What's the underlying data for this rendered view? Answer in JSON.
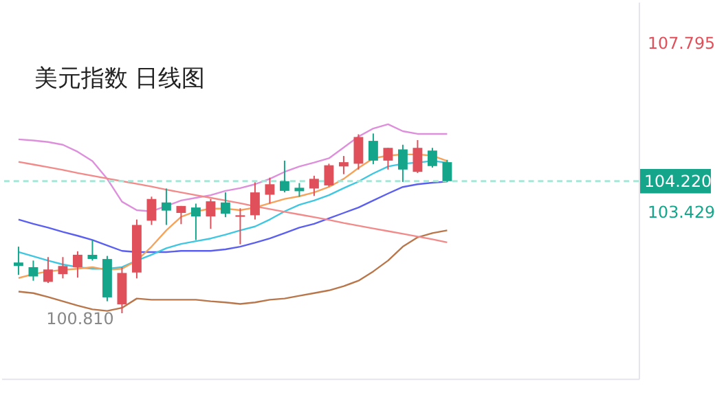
{
  "chart_data": {
    "type": "candlestick",
    "title": "美元指数 日线图",
    "categories": [
      null,
      null,
      null,
      null,
      null,
      null,
      null,
      null,
      null,
      null,
      null,
      null,
      null,
      null,
      null,
      null,
      null,
      null,
      null,
      null,
      null,
      null,
      null,
      null,
      null,
      null,
      null,
      null,
      null,
      null
    ],
    "ohlc": [
      [
        102.12,
        102.53,
        101.8,
        102.03
      ],
      [
        102.0,
        102.17,
        101.65,
        101.76
      ],
      [
        101.62,
        102.26,
        101.59,
        101.94
      ],
      [
        101.82,
        102.26,
        101.71,
        102.03
      ],
      [
        102.0,
        102.41,
        101.73,
        102.32
      ],
      [
        102.32,
        102.7,
        102.17,
        102.21
      ],
      [
        102.21,
        102.29,
        101.12,
        101.22
      ],
      [
        101.04,
        102.0,
        100.81,
        101.85
      ],
      [
        101.86,
        103.23,
        101.71,
        103.09
      ],
      [
        103.2,
        103.82,
        103.09,
        103.76
      ],
      [
        103.67,
        104.03,
        103.09,
        103.46
      ],
      [
        103.4,
        103.58,
        103.11,
        103.58
      ],
      [
        103.54,
        103.64,
        102.7,
        103.31
      ],
      [
        103.31,
        103.76,
        102.99,
        103.7
      ],
      [
        103.67,
        103.93,
        103.29,
        103.38
      ],
      [
        103.3,
        103.52,
        102.59,
        103.34
      ],
      [
        103.34,
        104.19,
        103.23,
        103.93
      ],
      [
        103.87,
        104.31,
        103.64,
        104.14
      ],
      [
        104.22,
        104.75,
        103.93,
        103.97
      ],
      [
        104.05,
        104.17,
        103.82,
        103.96
      ],
      [
        104.03,
        104.36,
        103.84,
        104.28
      ],
      [
        104.11,
        104.67,
        104.08,
        104.63
      ],
      [
        104.6,
        104.87,
        104.4,
        104.71
      ],
      [
        104.67,
        105.43,
        104.52,
        105.36
      ],
      [
        105.26,
        105.45,
        104.66,
        104.75
      ],
      [
        104.75,
        105.08,
        104.52,
        105.08
      ],
      [
        105.04,
        105.16,
        104.2,
        104.52
      ],
      [
        104.46,
        105.28,
        104.43,
        105.08
      ],
      [
        105.01,
        105.08,
        104.57,
        104.61
      ],
      [
        104.71,
        104.77,
        104.2,
        104.22
      ]
    ],
    "colors": [
      "#14a58a",
      "#14a58a",
      "#e0505a",
      "#e0505a",
      "#e0505a",
      "#14a58a",
      "#14a58a",
      "#e0505a",
      "#e0505a",
      "#e0505a",
      "#14a58a",
      "#e0505a",
      "#14a58a",
      "#e0505a",
      "#14a58a",
      "#e0505a",
      "#e0505a",
      "#e0505a",
      "#14a58a",
      "#14a58a",
      "#e0505a",
      "#e0505a",
      "#e0505a",
      "#e0505a",
      "#14a58a",
      "#e0505a",
      "#14a58a",
      "#e0505a",
      "#14a58a",
      "#14a58a"
    ],
    "series": [
      {
        "type": "line",
        "color": "#de8fdc",
        "values": [
          105.3,
          105.27,
          105.23,
          105.16,
          104.98,
          104.74,
          104.28,
          103.69,
          103.47,
          103.44,
          103.58,
          103.72,
          103.79,
          103.86,
          103.97,
          104.04,
          104.14,
          104.28,
          104.46,
          104.6,
          104.7,
          104.81,
          105.09,
          105.37,
          105.58,
          105.69,
          105.51,
          105.44,
          105.44,
          105.44
        ]
      },
      {
        "type": "line",
        "color": "#b8764a",
        "values": [
          101.37,
          101.33,
          101.23,
          101.12,
          101.01,
          100.91,
          100.87,
          100.95,
          101.19,
          101.16,
          101.16,
          101.16,
          101.16,
          101.12,
          101.09,
          101.05,
          101.09,
          101.16,
          101.19,
          101.26,
          101.33,
          101.4,
          101.51,
          101.65,
          101.89,
          102.17,
          102.53,
          102.77,
          102.88,
          102.95
        ]
      },
      {
        "type": "line",
        "color": "#5b5ff0",
        "values": [
          103.23,
          103.12,
          103.02,
          102.91,
          102.81,
          102.7,
          102.56,
          102.42,
          102.39,
          102.39,
          102.39,
          102.42,
          102.42,
          102.42,
          102.46,
          102.53,
          102.63,
          102.74,
          102.88,
          103.02,
          103.12,
          103.26,
          103.4,
          103.54,
          103.72,
          103.9,
          104.07,
          104.14,
          104.18,
          104.21
        ]
      },
      {
        "type": "line",
        "color": "#3fc6e0",
        "values": [
          102.39,
          102.28,
          102.17,
          102.07,
          102.0,
          101.96,
          101.96,
          102.0,
          102.17,
          102.32,
          102.49,
          102.6,
          102.67,
          102.74,
          102.84,
          102.95,
          103.05,
          103.23,
          103.44,
          103.61,
          103.72,
          103.86,
          104.04,
          104.21,
          104.42,
          104.6,
          104.67,
          104.7,
          104.74,
          104.7
        ]
      },
      {
        "type": "line",
        "color": "#f5a35a",
        "values": [
          101.72,
          101.82,
          101.89,
          101.93,
          101.96,
          102.0,
          101.93,
          101.96,
          102.17,
          102.53,
          102.95,
          103.3,
          103.44,
          103.51,
          103.51,
          103.47,
          103.54,
          103.65,
          103.76,
          103.83,
          103.93,
          104.07,
          104.28,
          104.56,
          104.81,
          104.88,
          104.91,
          104.91,
          104.88,
          104.74
        ]
      },
      {
        "type": "line",
        "color": "#f28a8a",
        "values": [
          104.72,
          104.65,
          104.58,
          104.51,
          104.43,
          104.36,
          104.29,
          104.22,
          104.15,
          104.08,
          104.0,
          103.93,
          103.86,
          103.79,
          103.72,
          103.65,
          103.57,
          103.5,
          103.43,
          103.36,
          103.29,
          103.22,
          103.14,
          103.07,
          103.0,
          102.93,
          102.86,
          102.79,
          102.72,
          102.64
        ]
      }
    ],
    "ylim": [
      99.12,
      108.85
    ],
    "yticks": [
      107.795,
      103.429
    ],
    "tick_labels": "y",
    "ref_lines": [
      {
        "axis": "y",
        "value": 104.22,
        "label": "104.220",
        "color": "#a8e6d8",
        "line_style": "dashed"
      }
    ],
    "annotations": [
      {
        "text": "100.810",
        "y": 100.81
      }
    ]
  }
}
